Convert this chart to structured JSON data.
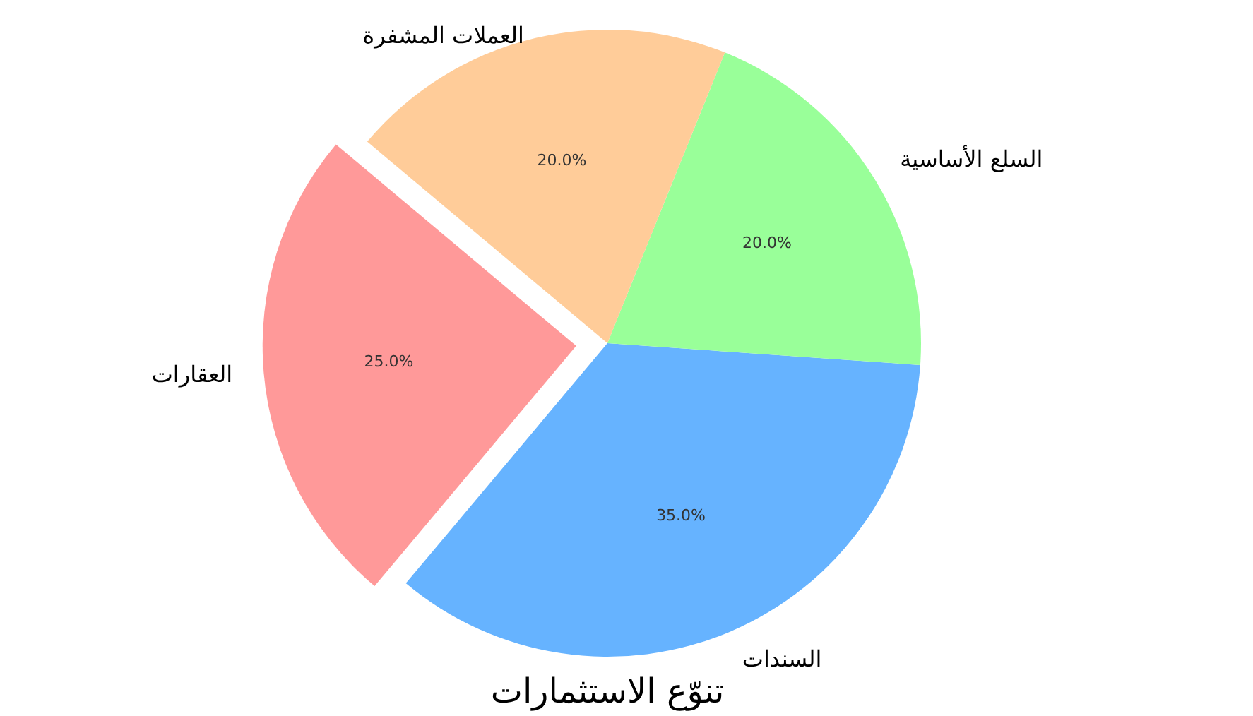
{
  "chart_data": {
    "type": "pie",
    "title": "تنوّع الاستثمارات",
    "categories": [
      "العقارات",
      "السندات",
      "السلع الأساسية",
      "العملات المشفرة"
    ],
    "values": [
      25,
      35,
      20,
      20
    ],
    "colors": [
      "#ff9999",
      "#66b3ff",
      "#99ff99",
      "#ffcc99"
    ],
    "value_labels": [
      "25.0%",
      "35.0%",
      "20.0%",
      "20.0%"
    ]
  }
}
